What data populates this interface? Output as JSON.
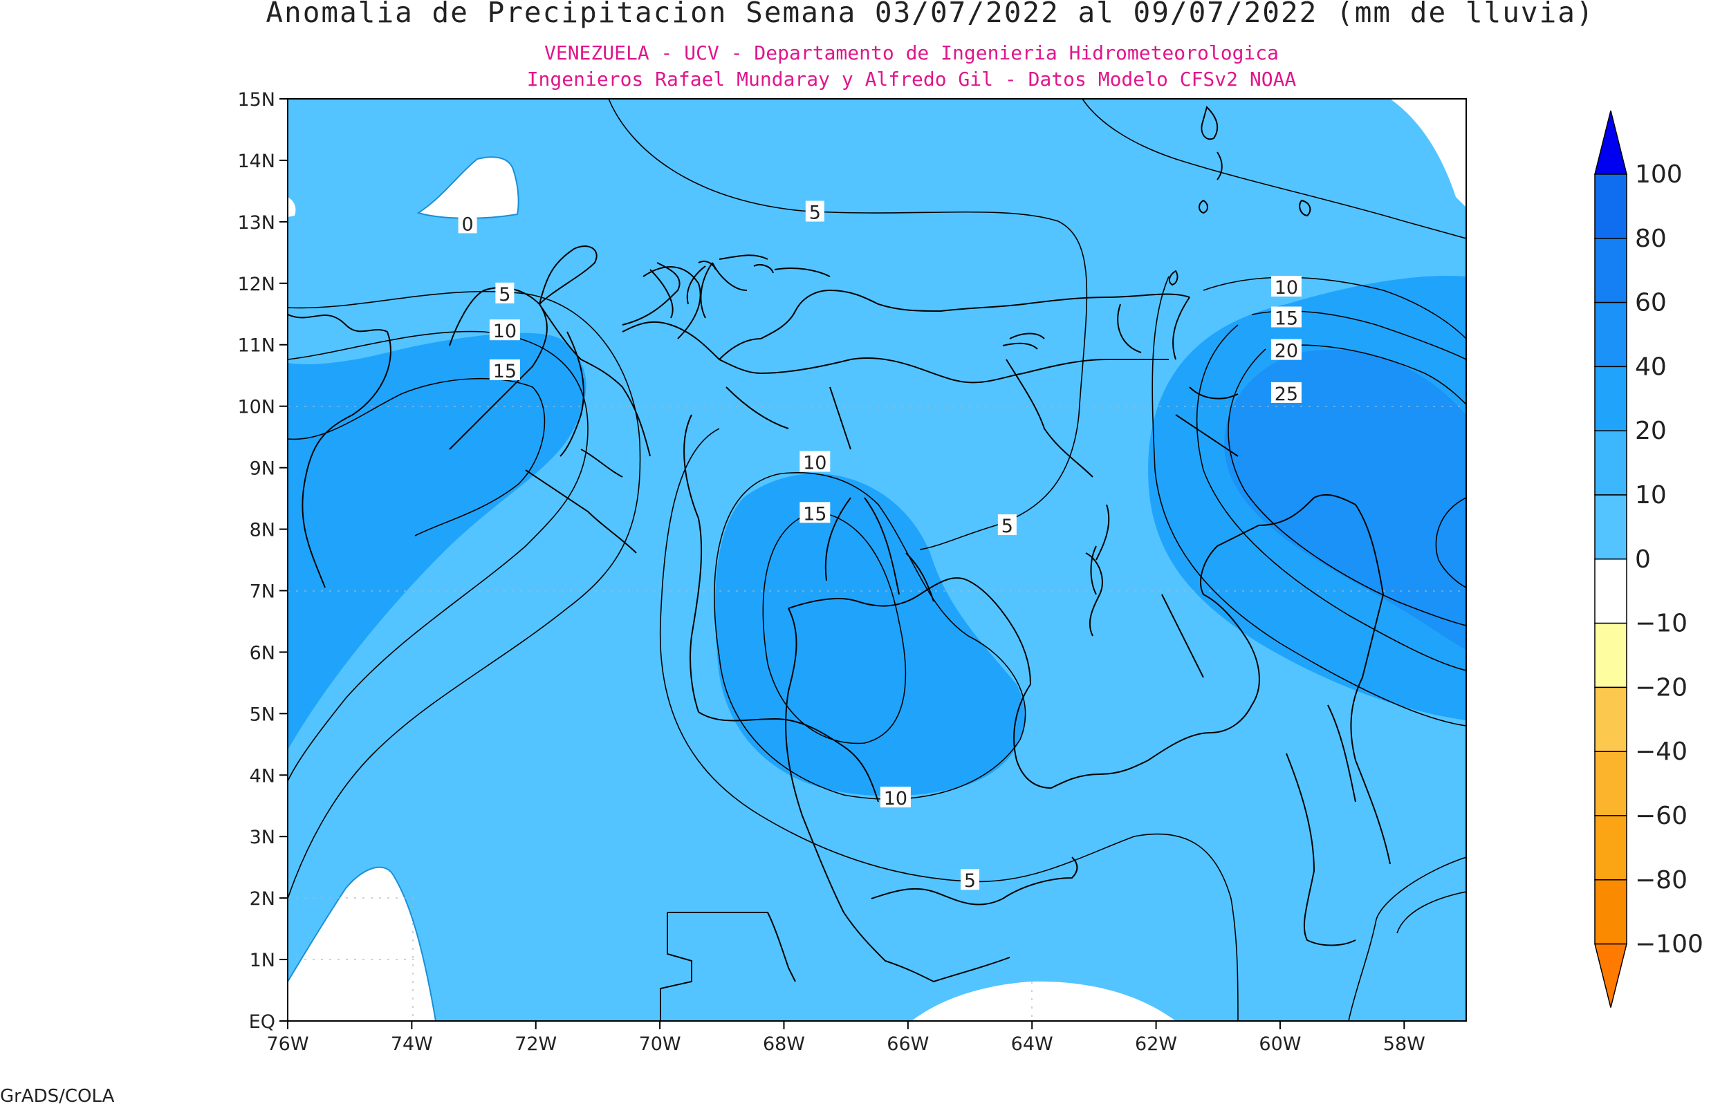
{
  "title": "Anomalia de Precipitacion Semana 03/07/2022 al 09/07/2022 (mm de lluvia)",
  "subtitle_1": "VENEZUELA - UCV - Departamento de Ingenieria Hidrometeorologica",
  "subtitle_2": "Ingenieros Rafael Mundaray y Alfredo Gil - Datos Modelo CFSv2 NOAA",
  "footer": "GrADS/COLA",
  "colors": {
    "title": "#222222",
    "subtitle": "#e0168c",
    "frame": "#000000"
  },
  "map": {
    "lon_range": [
      -76,
      -57
    ],
    "lat_range": [
      0,
      15
    ],
    "lat_ticks": [
      {
        "value": 15,
        "label": "15N"
      },
      {
        "value": 14,
        "label": "14N"
      },
      {
        "value": 13,
        "label": "13N"
      },
      {
        "value": 12,
        "label": "12N"
      },
      {
        "value": 11,
        "label": "11N"
      },
      {
        "value": 10,
        "label": "10N"
      },
      {
        "value": 9,
        "label": "9N"
      },
      {
        "value": 8,
        "label": "8N"
      },
      {
        "value": 7,
        "label": "7N"
      },
      {
        "value": 6,
        "label": "6N"
      },
      {
        "value": 5,
        "label": "5N"
      },
      {
        "value": 4,
        "label": "4N"
      },
      {
        "value": 3,
        "label": "3N"
      },
      {
        "value": 2,
        "label": "2N"
      },
      {
        "value": 1,
        "label": "1N"
      },
      {
        "value": 0,
        "label": "EQ"
      }
    ],
    "lon_ticks": [
      {
        "value": -76,
        "label": "76W"
      },
      {
        "value": -74,
        "label": "74W"
      },
      {
        "value": -72,
        "label": "72W"
      },
      {
        "value": -70,
        "label": "70W"
      },
      {
        "value": -68,
        "label": "68W"
      },
      {
        "value": -66,
        "label": "66W"
      },
      {
        "value": -64,
        "label": "64W"
      },
      {
        "value": -62,
        "label": "62W"
      },
      {
        "value": -60,
        "label": "60W"
      },
      {
        "value": -58,
        "label": "58W"
      }
    ],
    "contour_labels": [
      {
        "text": "0",
        "lon": -73.1,
        "lat": 12.96
      },
      {
        "text": "5",
        "lon": -67.5,
        "lat": 13.15
      },
      {
        "text": "5",
        "lon": -72.5,
        "lat": 11.82
      },
      {
        "text": "10",
        "lon": -72.5,
        "lat": 11.22
      },
      {
        "text": "15",
        "lon": -72.5,
        "lat": 10.57
      },
      {
        "text": "10",
        "lon": -67.5,
        "lat": 9.08
      },
      {
        "text": "15",
        "lon": -67.5,
        "lat": 8.25
      },
      {
        "text": "5",
        "lon": -64.4,
        "lat": 8.05
      },
      {
        "text": "10",
        "lon": -59.9,
        "lat": 11.93
      },
      {
        "text": "15",
        "lon": -59.9,
        "lat": 11.43
      },
      {
        "text": "20",
        "lon": -59.9,
        "lat": 10.9
      },
      {
        "text": "25",
        "lon": -59.9,
        "lat": 10.2
      },
      {
        "text": "10",
        "lon": -66.2,
        "lat": 3.62
      },
      {
        "text": "5",
        "lon": -65.0,
        "lat": 2.28
      }
    ]
  },
  "legend": {
    "levels": [
      {
        "label": "100",
        "value": 100,
        "color": "#0a5ce8"
      },
      {
        "label": "80",
        "value": 80,
        "color": "#0f6ef0"
      },
      {
        "label": "60",
        "value": 60,
        "color": "#1580f3"
      },
      {
        "label": "40",
        "value": 40,
        "color": "#1a92f7"
      },
      {
        "label": "20",
        "value": 20,
        "color": "#20a4fb"
      },
      {
        "label": "10",
        "value": 10,
        "color": "#3cb6fc"
      },
      {
        "label": "0",
        "value": 0,
        "color": "#53c4ff"
      },
      {
        "label": "-10",
        "value": -10,
        "color": "#ffffff"
      },
      {
        "label": "-20",
        "value": -20,
        "color": "#fefda0"
      },
      {
        "label": "-40",
        "value": -40,
        "color": "#fcc84e"
      },
      {
        "label": "-60",
        "value": -60,
        "color": "#fcb42c"
      },
      {
        "label": "-80",
        "value": -80,
        "color": "#fba414"
      },
      {
        "label": "-100",
        "value": -100,
        "color": "#fa8a00"
      }
    ],
    "over_color": "#0000f0",
    "under_color": "#ff7a00"
  }
}
